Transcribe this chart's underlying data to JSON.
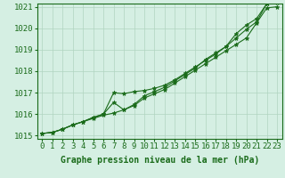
{
  "hours": [
    0,
    1,
    2,
    3,
    4,
    5,
    6,
    7,
    8,
    9,
    10,
    11,
    12,
    13,
    14,
    15,
    16,
    17,
    18,
    19,
    20,
    21,
    22,
    23
  ],
  "line1": [
    1015.1,
    1015.15,
    1015.3,
    1015.5,
    1015.65,
    1015.8,
    1015.95,
    1016.05,
    1016.2,
    1016.4,
    1016.75,
    1016.95,
    1017.15,
    1017.45,
    1017.75,
    1018.05,
    1018.35,
    1018.65,
    1018.95,
    1019.25,
    1019.55,
    1020.25,
    1020.95,
    1021.0
  ],
  "line2": [
    1015.1,
    1015.15,
    1015.3,
    1015.5,
    1015.65,
    1015.85,
    1016.0,
    1016.55,
    1016.2,
    1016.45,
    1016.85,
    1017.05,
    1017.25,
    1017.55,
    1017.85,
    1018.15,
    1018.55,
    1018.85,
    1019.15,
    1019.75,
    1020.15,
    1020.45,
    1021.15,
    1021.2
  ],
  "line3": [
    1015.1,
    1015.15,
    1015.3,
    1015.5,
    1015.65,
    1015.85,
    1016.0,
    1017.0,
    1016.95,
    1017.05,
    1017.1,
    1017.2,
    1017.35,
    1017.6,
    1017.9,
    1018.2,
    1018.5,
    1018.8,
    1019.15,
    1019.55,
    1019.95,
    1020.3,
    1021.15,
    1021.25
  ],
  "line_color": "#1a6b1a",
  "bg_color": "#d5efe3",
  "grid_color": "#b0d4c0",
  "xlabel": "Graphe pression niveau de la mer (hPa)",
  "ylim_min": 1014.85,
  "ylim_max": 1021.15,
  "yticks": [
    1015,
    1016,
    1017,
    1018,
    1019,
    1020,
    1021
  ],
  "xticks": [
    0,
    1,
    2,
    3,
    4,
    5,
    6,
    7,
    8,
    9,
    10,
    11,
    12,
    13,
    14,
    15,
    16,
    17,
    18,
    19,
    20,
    21,
    22,
    23
  ],
  "marker": "*",
  "marker_size": 3.5,
  "line_width": 0.8,
  "xlabel_fontsize": 7,
  "tick_fontsize": 6.5
}
